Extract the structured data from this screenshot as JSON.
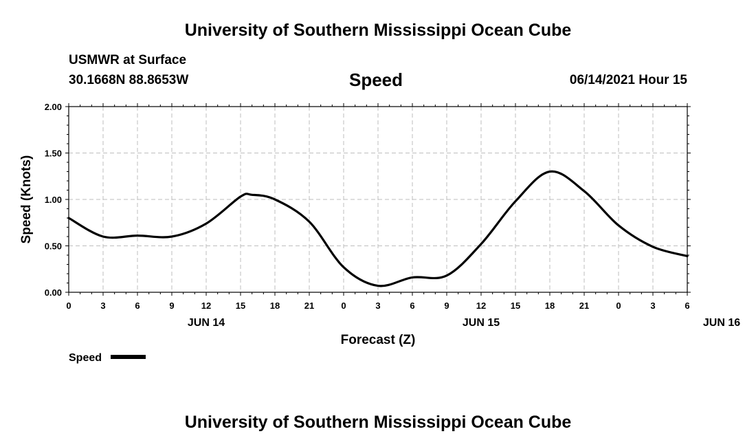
{
  "header": {
    "title": "University of Southern Mississippi Ocean Cube",
    "station": "USMWR at Surface",
    "location": "30.1668N  88.8653W",
    "variable": "Speed",
    "datetime": "06/14/2021 Hour 15",
    "footer_title": "University of Southern Mississippi Ocean Cube"
  },
  "chart_data": {
    "type": "line",
    "xlabel": "Forecast (Z)",
    "ylabel": "Speed (Knots)",
    "ylim": [
      0,
      2
    ],
    "yticks": [
      "0.00",
      "0.50",
      "1.00",
      "1.50",
      "2.00"
    ],
    "xticks": [
      "0",
      "3",
      "6",
      "9",
      "12",
      "15",
      "18",
      "21",
      "0",
      "3",
      "6",
      "9",
      "12",
      "15",
      "18",
      "21",
      "0",
      "3",
      "6"
    ],
    "date_labels": [
      {
        "label": "JUN 14",
        "hour_index": 12
      },
      {
        "label": "JUN 15",
        "hour_index": 36
      },
      {
        "label": "JUN 16",
        "hour_index": 57
      }
    ],
    "grid": true,
    "legend_position": "bottom-left",
    "series": [
      {
        "name": "Speed",
        "color": "#000000",
        "x": [
          0,
          3,
          6,
          9,
          12,
          15,
          16,
          18,
          21,
          24,
          27,
          30,
          33,
          36,
          39,
          42,
          45,
          48,
          51,
          54
        ],
        "values": [
          0.8,
          0.6,
          0.61,
          0.6,
          0.74,
          1.03,
          1.05,
          1.0,
          0.76,
          0.27,
          0.07,
          0.16,
          0.18,
          0.52,
          0.98,
          1.3,
          1.09,
          0.72,
          0.49,
          0.39
        ]
      }
    ]
  }
}
